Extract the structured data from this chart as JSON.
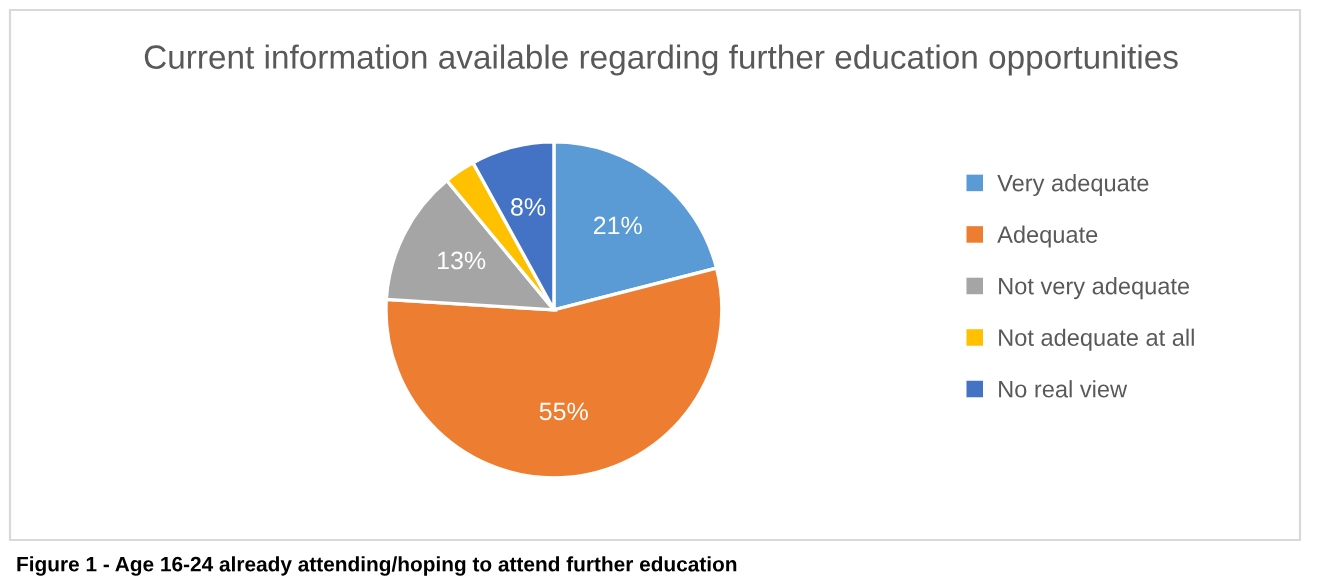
{
  "chart_data": {
    "type": "pie",
    "title": "Current information available regarding further education opportunities",
    "categories": [
      "Very adequate",
      "Adequate",
      "Not very adequate",
      "Not adequate at all",
      "No real view"
    ],
    "values": [
      21,
      55,
      13,
      3,
      8
    ],
    "value_labels": [
      "21%",
      "55%",
      "13%",
      null,
      "8%"
    ],
    "colors": [
      "#5b9bd5",
      "#ed7d31",
      "#a5a5a5",
      "#ffc000",
      "#4472c4"
    ],
    "legend": "right",
    "annotations": [
      "Figure 1 - Age 16-24 already attending/hoping to attend further education"
    ]
  }
}
